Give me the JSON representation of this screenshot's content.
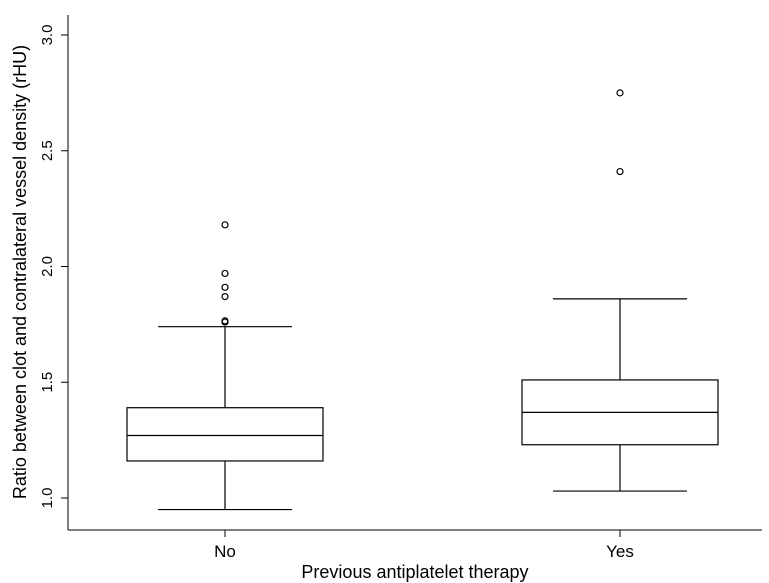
{
  "chart_data": {
    "type": "boxplot",
    "xlabel": "Previous antiplatelet therapy",
    "ylabel": "Ratio between clot and contralateral vessel density (rHU)",
    "ylim": [
      0.93,
      3.03
    ],
    "yticks": [
      "1.0",
      "1.5",
      "2.0",
      "2.5",
      "3.0"
    ],
    "categories": [
      "No",
      "Yes"
    ],
    "boxes": [
      {
        "category": "No",
        "whisker_low": 0.95,
        "q1": 1.16,
        "median": 1.27,
        "q3": 1.39,
        "whisker_high": 1.74,
        "outliers": [
          1.76,
          1.765,
          1.87,
          1.91,
          1.97,
          2.18
        ]
      },
      {
        "category": "Yes",
        "whisker_low": 1.03,
        "q1": 1.23,
        "median": 1.37,
        "q3": 1.51,
        "whisker_high": 1.86,
        "outliers": [
          2.41,
          2.75
        ]
      }
    ],
    "grid": false,
    "legend": "none",
    "color": "#000000"
  }
}
